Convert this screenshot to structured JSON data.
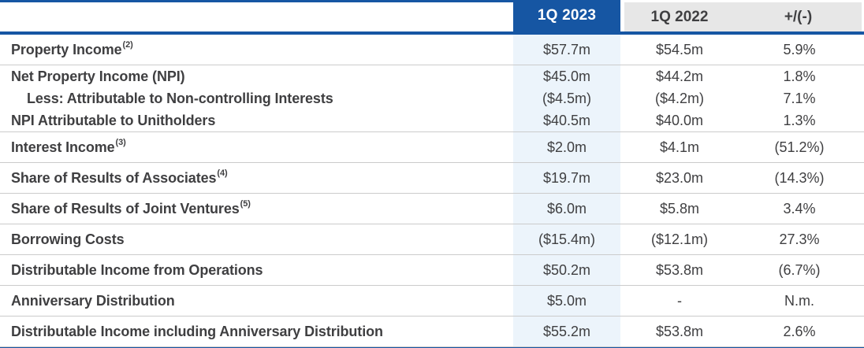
{
  "colors": {
    "accent_blue": "#1656A3",
    "header_gray": "#E7E7E7",
    "highlight_column_blue": "#ECF4FB",
    "text": "#3F3F41",
    "row_divider": "#CBCBCB"
  },
  "header": {
    "col_2023": "1Q 2023",
    "col_2022": "1Q 2022",
    "col_change": "+/(-)"
  },
  "rows": [
    {
      "label": "Property Income",
      "footnote": "(2)",
      "q1_2023": "$57.7m",
      "q1_2022": "$54.5m",
      "change": "5.9%"
    },
    {
      "lines": [
        {
          "label": "Net Property Income (NPI)",
          "q1_2023": "$45.0m",
          "q1_2022": "$44.2m",
          "change": "1.8%"
        },
        {
          "label": "Less: Attributable to Non-controlling Interests",
          "q1_2023": "($4.5m)",
          "q1_2022": "($4.2m)",
          "change": "7.1%"
        },
        {
          "label": "NPI Attributable to Unitholders",
          "q1_2023": "$40.5m",
          "q1_2022": "$40.0m",
          "change": "1.3%"
        }
      ]
    },
    {
      "label": "Interest Income",
      "footnote": "(3)",
      "q1_2023": "$2.0m",
      "q1_2022": "$4.1m",
      "change": "(51.2%)"
    },
    {
      "label": "Share of Results of Associates",
      "footnote": "(4)",
      "q1_2023": "$19.7m",
      "q1_2022": "$23.0m",
      "change": "(14.3%)"
    },
    {
      "label": "Share of Results of Joint Ventures",
      "footnote": "(5)",
      "q1_2023": "$6.0m",
      "q1_2022": "$5.8m",
      "change": "3.4%"
    },
    {
      "label": "Borrowing Costs",
      "q1_2023": "($15.4m)",
      "q1_2022": "($12.1m)",
      "change": "27.3%"
    },
    {
      "label": "Distributable Income from Operations",
      "q1_2023": "$50.2m",
      "q1_2022": "$53.8m",
      "change": "(6.7%)"
    },
    {
      "label": "Anniversary Distribution",
      "q1_2023": "$5.0m",
      "q1_2022": "-",
      "change": "N.m."
    },
    {
      "label": "Distributable Income including Anniversary Distribution",
      "q1_2023": "$55.2m",
      "q1_2022": "$53.8m",
      "change": "2.6%"
    }
  ]
}
